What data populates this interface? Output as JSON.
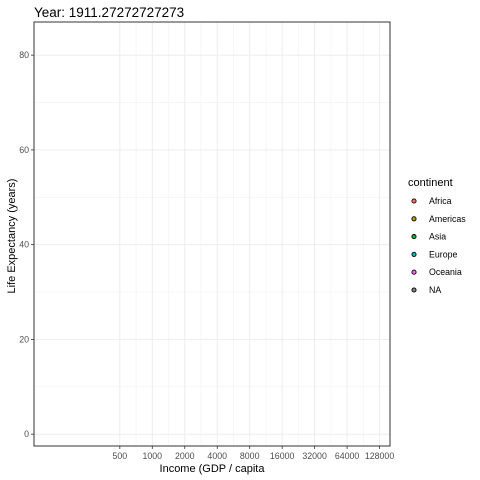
{
  "chart_data": {
    "type": "scatter",
    "title": "Year: 1911.27272727273",
    "xlabel": "Income (GDP / capita",
    "ylabel": "Life Expectancy (years)",
    "x_scale": "log2",
    "x_ticks": [
      500,
      1000,
      2000,
      4000,
      8000,
      16000,
      32000,
      64000,
      128000
    ],
    "x_tick_labels": [
      "500",
      "1000",
      "2000",
      "4000",
      "8000",
      "16000",
      "32000",
      "64000",
      "128000"
    ],
    "xlim": [
      80,
      160000
    ],
    "y_ticks": [
      0,
      20,
      40,
      60,
      80
    ],
    "y_tick_labels": [
      "0",
      "20",
      "40",
      "60",
      "80"
    ],
    "ylim": [
      -2.5,
      87
    ],
    "grid": true,
    "points": [],
    "legend": {
      "title": "continent",
      "placement": "right",
      "entries": [
        {
          "label": "Africa",
          "color": "#F8766D"
        },
        {
          "label": "Americas",
          "color": "#B79F00"
        },
        {
          "label": "Asia",
          "color": "#00BA38"
        },
        {
          "label": "Europe",
          "color": "#00BFC4"
        },
        {
          "label": "Oceania",
          "color": "#F564E3"
        },
        {
          "label": "NA",
          "color": "#7F7F7F"
        }
      ]
    }
  }
}
